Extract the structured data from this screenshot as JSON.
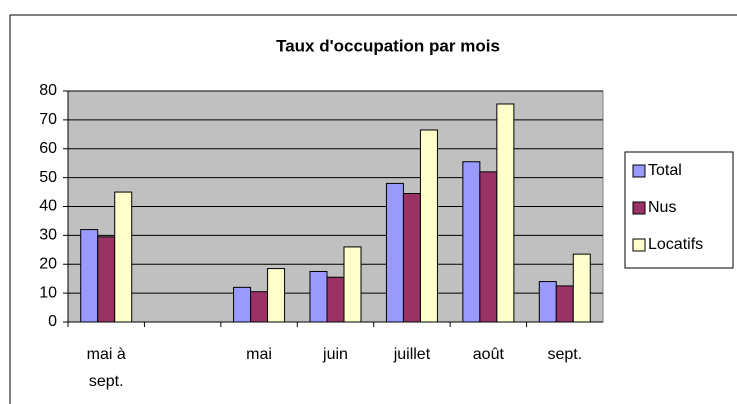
{
  "chart_data": {
    "type": "bar",
    "title": "Taux d'occupation par mois",
    "categories": [
      "mai à sept.",
      null,
      "mai",
      "juin",
      "juillet",
      "août",
      "sept."
    ],
    "series": [
      {
        "name": "Total",
        "color": "#9999ff",
        "values": [
          32,
          null,
          12,
          17.5,
          48,
          55.5,
          14
        ]
      },
      {
        "name": "Nus",
        "color": "#993366",
        "values": [
          29.5,
          null,
          10.5,
          15.5,
          44.5,
          52,
          12.5
        ]
      },
      {
        "name": "Locatifs",
        "color": "#ffffcc",
        "values": [
          45,
          null,
          18.5,
          26,
          66.5,
          75.5,
          23.5
        ]
      }
    ],
    "ylim": [
      0,
      80
    ],
    "yticks": [
      0,
      10,
      20,
      30,
      40,
      50,
      60,
      70,
      80
    ],
    "grid": true,
    "legend": "right"
  }
}
